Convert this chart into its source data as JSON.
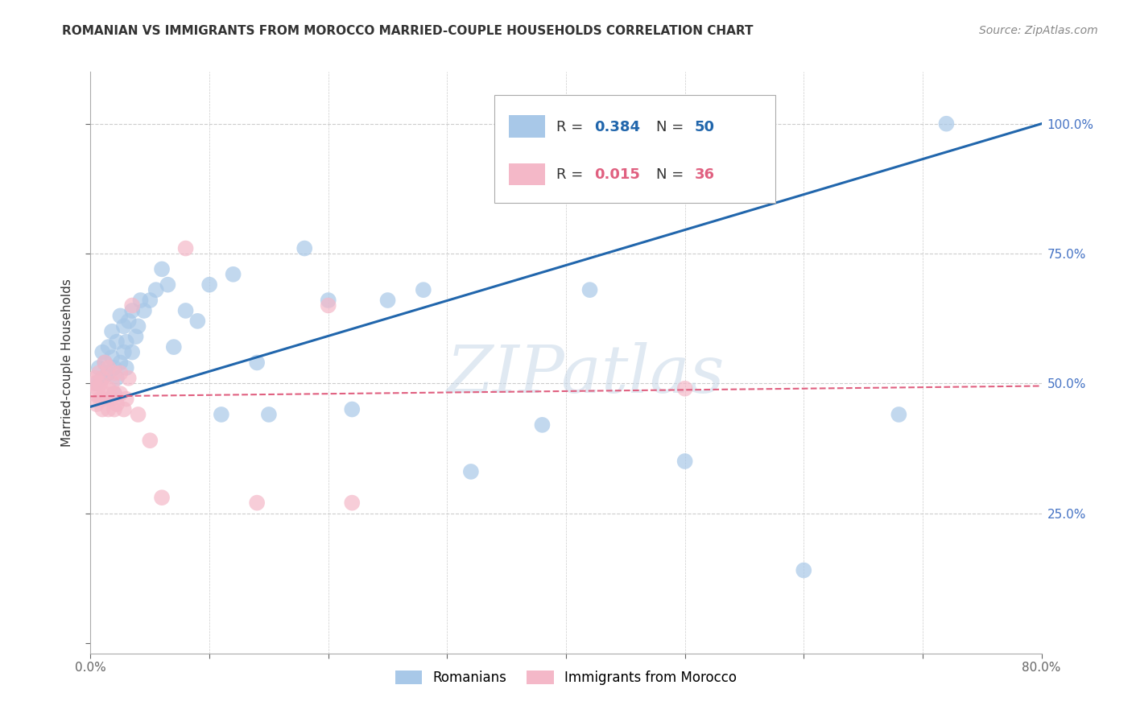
{
  "title": "ROMANIAN VS IMMIGRANTS FROM MOROCCO MARRIED-COUPLE HOUSEHOLDS CORRELATION CHART",
  "source": "Source: ZipAtlas.com",
  "ylabel": "Married-couple Households",
  "xlim": [
    0.0,
    0.8
  ],
  "ylim": [
    -0.02,
    1.1
  ],
  "blue_color": "#a8c8e8",
  "pink_color": "#f4b8c8",
  "line_blue": "#2166ac",
  "line_pink": "#e06080",
  "legend_r_blue": "0.384",
  "legend_n_blue": "50",
  "legend_r_pink": "0.015",
  "legend_n_pink": "36",
  "watermark": "ZIPatlas",
  "blue_line_x0": 0.0,
  "blue_line_y0": 0.455,
  "blue_line_x1": 0.8,
  "blue_line_y1": 1.0,
  "pink_line_x0": 0.0,
  "pink_line_y0": 0.475,
  "pink_line_x1": 0.8,
  "pink_line_y1": 0.495,
  "blue_x": [
    0.005,
    0.007,
    0.01,
    0.01,
    0.012,
    0.015,
    0.015,
    0.018,
    0.018,
    0.02,
    0.02,
    0.022,
    0.022,
    0.025,
    0.025,
    0.028,
    0.028,
    0.03,
    0.03,
    0.032,
    0.035,
    0.035,
    0.038,
    0.04,
    0.042,
    0.045,
    0.05,
    0.055,
    0.06,
    0.065,
    0.07,
    0.08,
    0.09,
    0.1,
    0.11,
    0.12,
    0.14,
    0.15,
    0.18,
    0.2,
    0.22,
    0.25,
    0.28,
    0.32,
    0.38,
    0.42,
    0.5,
    0.6,
    0.68,
    0.72
  ],
  "blue_y": [
    0.5,
    0.53,
    0.51,
    0.56,
    0.54,
    0.52,
    0.57,
    0.55,
    0.6,
    0.48,
    0.53,
    0.51,
    0.58,
    0.54,
    0.63,
    0.56,
    0.61,
    0.53,
    0.58,
    0.62,
    0.56,
    0.64,
    0.59,
    0.61,
    0.66,
    0.64,
    0.66,
    0.68,
    0.72,
    0.69,
    0.57,
    0.64,
    0.62,
    0.69,
    0.44,
    0.71,
    0.54,
    0.44,
    0.76,
    0.66,
    0.45,
    0.66,
    0.68,
    0.33,
    0.42,
    0.68,
    0.35,
    0.14,
    0.44,
    1.0
  ],
  "pink_x": [
    0.003,
    0.003,
    0.004,
    0.005,
    0.006,
    0.007,
    0.008,
    0.008,
    0.01,
    0.01,
    0.01,
    0.012,
    0.012,
    0.015,
    0.015,
    0.015,
    0.018,
    0.018,
    0.02,
    0.02,
    0.02,
    0.022,
    0.025,
    0.025,
    0.028,
    0.03,
    0.032,
    0.035,
    0.04,
    0.05,
    0.06,
    0.08,
    0.14,
    0.2,
    0.22,
    0.5
  ],
  "pink_y": [
    0.48,
    0.5,
    0.51,
    0.46,
    0.49,
    0.52,
    0.47,
    0.5,
    0.45,
    0.47,
    0.51,
    0.48,
    0.54,
    0.45,
    0.49,
    0.53,
    0.47,
    0.5,
    0.45,
    0.48,
    0.52,
    0.46,
    0.48,
    0.52,
    0.45,
    0.47,
    0.51,
    0.65,
    0.44,
    0.39,
    0.28,
    0.76,
    0.27,
    0.65,
    0.27,
    0.49
  ],
  "background_color": "#ffffff",
  "grid_color": "#cccccc",
  "ytick_color": "#4472c4",
  "title_fontsize": 11,
  "source_fontsize": 10,
  "axis_label_fontsize": 11,
  "legend_fontsize": 13,
  "watermark_fontsize": 60
}
